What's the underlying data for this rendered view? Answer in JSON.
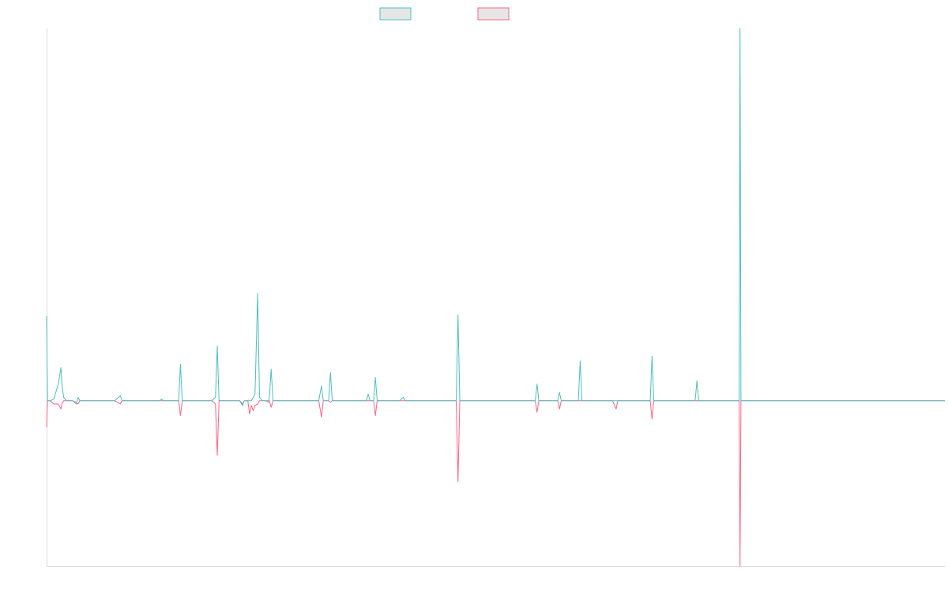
{
  "chart_data": {
    "type": "line",
    "title": "",
    "xlabel": "",
    "ylabel": "",
    "grid": false,
    "legend_position": "top-center",
    "ylim": [
      -100,
      225
    ],
    "xlim": [
      0,
      1000
    ],
    "series": [
      {
        "name": "",
        "color": "#4bc0c0",
        "swatch_fill": "#e6e6e6",
        "points": [
          [
            0,
            51
          ],
          [
            1,
            0
          ],
          [
            4,
            0
          ],
          [
            8,
            1
          ],
          [
            13,
            10
          ],
          [
            16,
            20
          ],
          [
            17,
            10
          ],
          [
            19,
            2
          ],
          [
            22,
            0
          ],
          [
            26,
            0
          ],
          [
            29,
            0
          ],
          [
            33,
            -2
          ],
          [
            35,
            2
          ],
          [
            37,
            0
          ],
          [
            42,
            0
          ],
          [
            45,
            0
          ],
          [
            48,
            0
          ],
          [
            50,
            0
          ],
          [
            55,
            0
          ],
          [
            60,
            0
          ],
          [
            62,
            0
          ],
          [
            64,
            0
          ],
          [
            67,
            0
          ],
          [
            70,
            0
          ],
          [
            72,
            0
          ],
          [
            76,
            0
          ],
          [
            82,
            3
          ],
          [
            84,
            0
          ],
          [
            86,
            0
          ],
          [
            90,
            0
          ],
          [
            94,
            0
          ],
          [
            98,
            0
          ],
          [
            102,
            0
          ],
          [
            106,
            0
          ],
          [
            110,
            0
          ],
          [
            114,
            0
          ],
          [
            120,
            0
          ],
          [
            126,
            0
          ],
          [
            128,
            1
          ],
          [
            130,
            0
          ],
          [
            134,
            0
          ],
          [
            140,
            0
          ],
          [
            145,
            0
          ],
          [
            147,
            0
          ],
          [
            149,
            22
          ],
          [
            151,
            0
          ],
          [
            155,
            0
          ],
          [
            160,
            0
          ],
          [
            165,
            0
          ],
          [
            170,
            0
          ],
          [
            175,
            0
          ],
          [
            180,
            0
          ],
          [
            184,
            0
          ],
          [
            188,
            2
          ],
          [
            190,
            33
          ],
          [
            192,
            0
          ],
          [
            195,
            0
          ],
          [
            200,
            0
          ],
          [
            205,
            0
          ],
          [
            215,
            0
          ],
          [
            218,
            -3
          ],
          [
            220,
            0
          ],
          [
            224,
            0
          ],
          [
            228,
            0
          ],
          [
            232,
            4
          ],
          [
            235,
            65
          ],
          [
            237,
            2
          ],
          [
            240,
            0
          ],
          [
            244,
            0
          ],
          [
            247,
            -1
          ],
          [
            248,
            2
          ],
          [
            250,
            19
          ],
          [
            252,
            0
          ],
          [
            256,
            0
          ],
          [
            262,
            0
          ],
          [
            270,
            0
          ],
          [
            276,
            0
          ],
          [
            280,
            0
          ],
          [
            284,
            0
          ],
          [
            288,
            0
          ],
          [
            292,
            0
          ],
          [
            295,
            0
          ],
          [
            298,
            0
          ],
          [
            303,
            0
          ],
          [
            306,
            9
          ],
          [
            308,
            0
          ],
          [
            312,
            0
          ],
          [
            314,
            0
          ],
          [
            316,
            17
          ],
          [
            318,
            0
          ],
          [
            322,
            0
          ],
          [
            326,
            0
          ],
          [
            330,
            0
          ],
          [
            334,
            0
          ],
          [
            338,
            0
          ],
          [
            342,
            0
          ],
          [
            346,
            0
          ],
          [
            350,
            0
          ],
          [
            354,
            0
          ],
          [
            356,
            0
          ],
          [
            358,
            4
          ],
          [
            360,
            0
          ],
          [
            364,
            0
          ],
          [
            366,
            14
          ],
          [
            368,
            0
          ],
          [
            372,
            0
          ],
          [
            380,
            0
          ],
          [
            390,
            0
          ],
          [
            393,
            0
          ],
          [
            395,
            1
          ],
          [
            397,
            2
          ],
          [
            399,
            0
          ],
          [
            404,
            0
          ],
          [
            410,
            0
          ],
          [
            420,
            0
          ],
          [
            450,
            0
          ],
          [
            455,
            0
          ],
          [
            456,
            0
          ],
          [
            458,
            52
          ],
          [
            460,
            0
          ],
          [
            470,
            0
          ],
          [
            500,
            0
          ],
          [
            520,
            0
          ],
          [
            530,
            0
          ],
          [
            540,
            0
          ],
          [
            544,
            0
          ],
          [
            546,
            10
          ],
          [
            548,
            0
          ],
          [
            560,
            0
          ],
          [
            569,
            0
          ],
          [
            571,
            5
          ],
          [
            573,
            0
          ],
          [
            590,
            0
          ],
          [
            592,
            0
          ],
          [
            594,
            24
          ],
          [
            596,
            0
          ],
          [
            630,
            0
          ],
          [
            640,
            0
          ],
          [
            660,
            0
          ],
          [
            670,
            0
          ],
          [
            672,
            0
          ],
          [
            674,
            27
          ],
          [
            676,
            0
          ],
          [
            700,
            0
          ],
          [
            720,
            0
          ],
          [
            722,
            0
          ],
          [
            724,
            12
          ],
          [
            726,
            0
          ],
          [
            740,
            0
          ],
          [
            760,
            0
          ],
          [
            770,
            0
          ],
          [
            771,
            0
          ],
          [
            772,
            225
          ],
          [
            773,
            0
          ],
          [
            780,
            0
          ],
          [
            800,
            0
          ],
          [
            850,
            0
          ],
          [
            900,
            0
          ],
          [
            950,
            0
          ],
          [
            1000,
            0
          ]
        ]
      },
      {
        "name": "",
        "color": "#ff6384",
        "swatch_fill": "#e6e6e6",
        "points": [
          [
            0,
            -16
          ],
          [
            1,
            0
          ],
          [
            4,
            0
          ],
          [
            8,
            -2
          ],
          [
            13,
            -2
          ],
          [
            16,
            -5
          ],
          [
            17,
            -2
          ],
          [
            19,
            0
          ],
          [
            22,
            0
          ],
          [
            26,
            0
          ],
          [
            29,
            0
          ],
          [
            33,
            -1
          ],
          [
            35,
            -2
          ],
          [
            37,
            0
          ],
          [
            42,
            0
          ],
          [
            45,
            0
          ],
          [
            48,
            0
          ],
          [
            50,
            0
          ],
          [
            55,
            0
          ],
          [
            60,
            0
          ],
          [
            62,
            0
          ],
          [
            64,
            0
          ],
          [
            67,
            0
          ],
          [
            70,
            0
          ],
          [
            72,
            0
          ],
          [
            76,
            0
          ],
          [
            82,
            -2
          ],
          [
            84,
            0
          ],
          [
            86,
            0
          ],
          [
            90,
            0
          ],
          [
            94,
            0
          ],
          [
            98,
            0
          ],
          [
            102,
            0
          ],
          [
            106,
            0
          ],
          [
            110,
            0
          ],
          [
            114,
            0
          ],
          [
            120,
            0
          ],
          [
            126,
            0
          ],
          [
            128,
            0
          ],
          [
            130,
            0
          ],
          [
            134,
            0
          ],
          [
            140,
            0
          ],
          [
            145,
            0
          ],
          [
            147,
            0
          ],
          [
            149,
            -9
          ],
          [
            151,
            0
          ],
          [
            155,
            0
          ],
          [
            160,
            0
          ],
          [
            165,
            0
          ],
          [
            170,
            0
          ],
          [
            175,
            0
          ],
          [
            180,
            0
          ],
          [
            184,
            0
          ],
          [
            188,
            -2
          ],
          [
            190,
            -33
          ],
          [
            192,
            0
          ],
          [
            195,
            0
          ],
          [
            200,
            0
          ],
          [
            205,
            0
          ],
          [
            215,
            0
          ],
          [
            218,
            -2
          ],
          [
            220,
            0
          ],
          [
            224,
            0
          ],
          [
            226,
            -8
          ],
          [
            228,
            -3
          ],
          [
            230,
            -6
          ],
          [
            232,
            -3
          ],
          [
            235,
            -2
          ],
          [
            237,
            0
          ],
          [
            240,
            0
          ],
          [
            244,
            0
          ],
          [
            247,
            0
          ],
          [
            248,
            0
          ],
          [
            250,
            -4
          ],
          [
            252,
            0
          ],
          [
            256,
            0
          ],
          [
            262,
            0
          ],
          [
            270,
            0
          ],
          [
            276,
            0
          ],
          [
            280,
            0
          ],
          [
            284,
            0
          ],
          [
            288,
            0
          ],
          [
            292,
            0
          ],
          [
            295,
            0
          ],
          [
            298,
            0
          ],
          [
            303,
            0
          ],
          [
            306,
            -10
          ],
          [
            308,
            0
          ],
          [
            312,
            0
          ],
          [
            314,
            0
          ],
          [
            316,
            -1
          ],
          [
            318,
            0
          ],
          [
            322,
            0
          ],
          [
            326,
            0
          ],
          [
            330,
            0
          ],
          [
            334,
            0
          ],
          [
            338,
            0
          ],
          [
            342,
            0
          ],
          [
            346,
            0
          ],
          [
            350,
            0
          ],
          [
            354,
            0
          ],
          [
            356,
            0
          ],
          [
            358,
            0
          ],
          [
            360,
            0
          ],
          [
            364,
            0
          ],
          [
            366,
            -9
          ],
          [
            368,
            0
          ],
          [
            372,
            0
          ],
          [
            380,
            0
          ],
          [
            390,
            0
          ],
          [
            393,
            0
          ],
          [
            395,
            0
          ],
          [
            397,
            0
          ],
          [
            399,
            0
          ],
          [
            404,
            0
          ],
          [
            410,
            0
          ],
          [
            420,
            0
          ],
          [
            450,
            0
          ],
          [
            455,
            0
          ],
          [
            456,
            0
          ],
          [
            458,
            -49
          ],
          [
            460,
            0
          ],
          [
            470,
            0
          ],
          [
            500,
            0
          ],
          [
            520,
            0
          ],
          [
            530,
            0
          ],
          [
            540,
            0
          ],
          [
            544,
            0
          ],
          [
            546,
            -7
          ],
          [
            548,
            0
          ],
          [
            560,
            0
          ],
          [
            569,
            0
          ],
          [
            571,
            -5
          ],
          [
            573,
            0
          ],
          [
            590,
            0
          ],
          [
            592,
            0
          ],
          [
            594,
            0
          ],
          [
            596,
            0
          ],
          [
            630,
            0
          ],
          [
            634,
            -5
          ],
          [
            636,
            0
          ],
          [
            640,
            0
          ],
          [
            660,
            0
          ],
          [
            670,
            0
          ],
          [
            672,
            0
          ],
          [
            674,
            -11
          ],
          [
            676,
            0
          ],
          [
            700,
            0
          ],
          [
            720,
            0
          ],
          [
            722,
            0
          ],
          [
            724,
            0
          ],
          [
            726,
            0
          ],
          [
            740,
            0
          ],
          [
            760,
            0
          ],
          [
            770,
            0
          ],
          [
            771,
            0
          ],
          [
            772,
            -100
          ],
          [
            773,
            0
          ],
          [
            780,
            0
          ],
          [
            800,
            0
          ],
          [
            850,
            0
          ],
          [
            900,
            0
          ],
          [
            950,
            0
          ],
          [
            1000,
            0
          ]
        ]
      }
    ]
  }
}
